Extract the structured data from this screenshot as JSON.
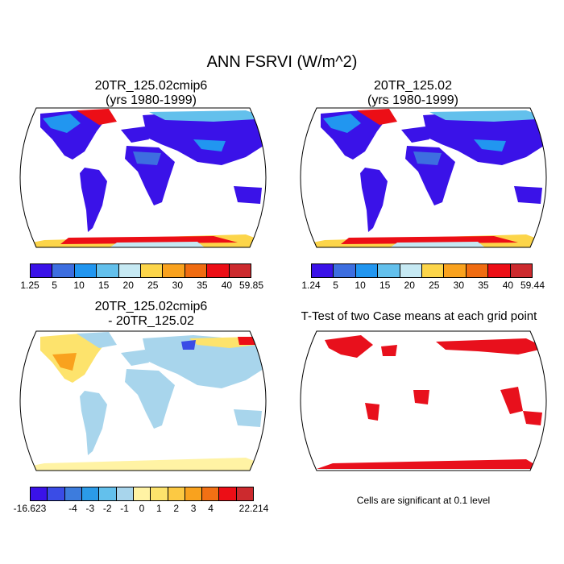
{
  "title": "ANN FSRVI (W/m^2)",
  "panels": {
    "p1": {
      "line1": "20TR_125.02cmip6",
      "line2": "(yrs 1980-1999)"
    },
    "p2": {
      "line1": "20TR_125.02",
      "line2": "(yrs 1980-1999)"
    },
    "p3": {
      "line1": "20TR_125.02cmip6",
      "line2": "- 20TR_125.02"
    },
    "p4": {
      "line1": "T-Test of two Case means at each grid point"
    }
  },
  "colorbars": {
    "cb1": {
      "colors": [
        "#3a12e8",
        "#3d6ee0",
        "#2196f0",
        "#63c0ec",
        "#c6e9f3",
        "#fcd54a",
        "#f9a21e",
        "#f06c11",
        "#ec0e16",
        "#cc2a2e"
      ],
      "labels": [
        "1.25",
        "5",
        "10",
        "15",
        "20",
        "25",
        "30",
        "35",
        "40",
        "59.85"
      ]
    },
    "cb2": {
      "colors": [
        "#3a12e8",
        "#3d6ee0",
        "#2196f0",
        "#63c0ec",
        "#c6e9f3",
        "#fcd54a",
        "#f9a21e",
        "#f06c11",
        "#ec0e16",
        "#cc2a2e"
      ],
      "labels": [
        "1.24",
        "5",
        "10",
        "15",
        "20",
        "25",
        "30",
        "35",
        "40",
        "59.44"
      ]
    },
    "cb3": {
      "colors": [
        "#3a12e8",
        "#3a4ce6",
        "#3d7cdd",
        "#2b9be8",
        "#63c0ec",
        "#a8d5ec",
        "#fff3a4",
        "#fde36c",
        "#fcc943",
        "#f9a21e",
        "#f27014",
        "#ec0e16",
        "#cc2a2e"
      ],
      "labels": [
        "-16.623",
        "-4",
        "-3",
        "-2",
        "-1",
        "0",
        "1",
        "2",
        "3",
        "4",
        "22.214"
      ]
    }
  },
  "note": "Cells are significant at 0.1 level"
}
